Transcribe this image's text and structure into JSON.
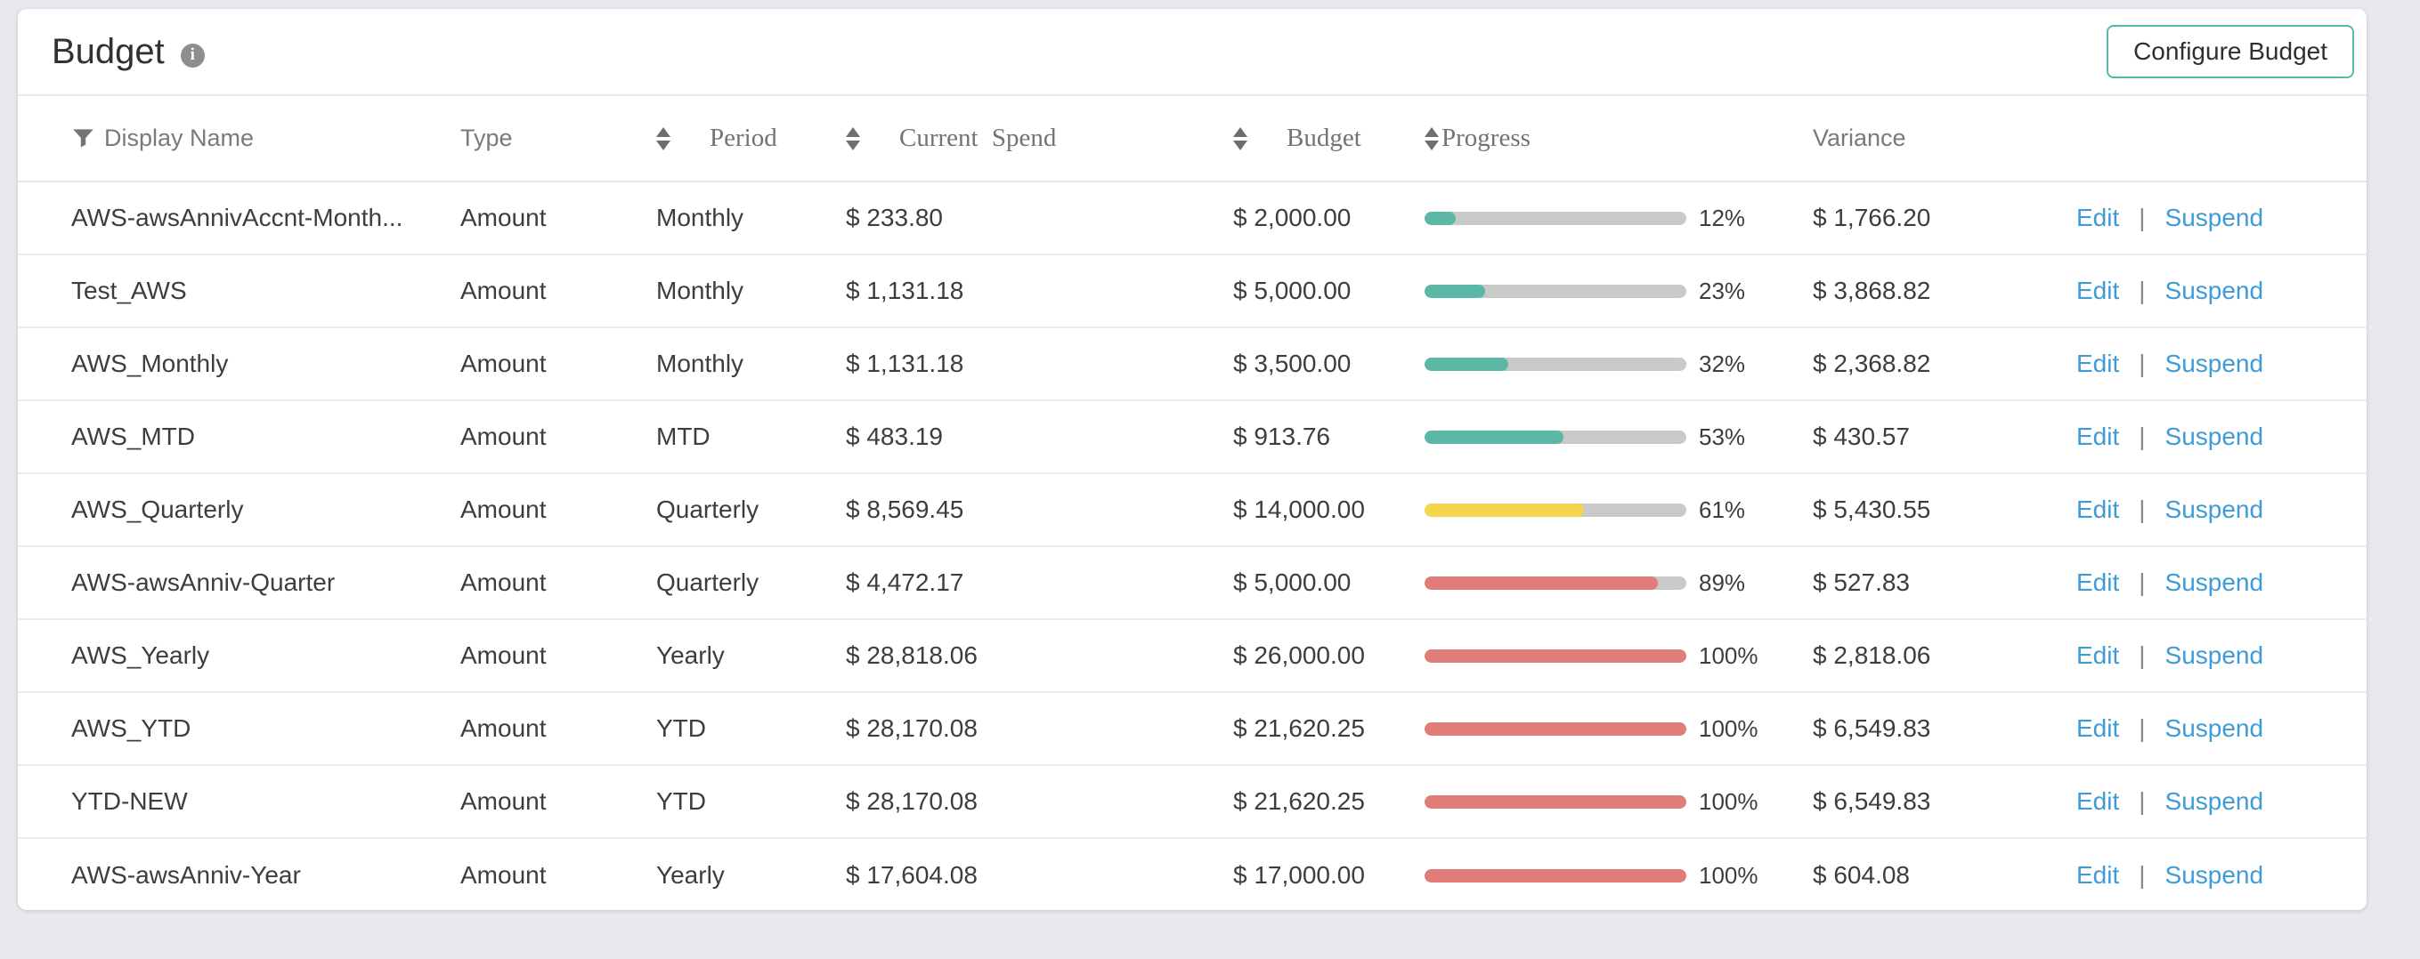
{
  "card": {
    "title": "Budget",
    "info_glyph": "i",
    "configure_button_label": "Configure Budget",
    "accent_color": "#55b9a9"
  },
  "table": {
    "columns": [
      {
        "key": "display_name",
        "label": "Display Name",
        "filter": true,
        "sortable": false
      },
      {
        "key": "type",
        "label": "Type",
        "sortable": false
      },
      {
        "key": "period",
        "label": "Period",
        "sortable": true
      },
      {
        "key": "current_spend",
        "label": "Current Spend",
        "sortable": true
      },
      {
        "key": "budget",
        "label": "Budget",
        "sortable": true
      },
      {
        "key": "progress",
        "label": "Progress",
        "sortable": true
      },
      {
        "key": "variance",
        "label": "Variance",
        "sortable": false
      }
    ],
    "actions": {
      "edit": "Edit",
      "separator": "|",
      "suspend": "Suspend"
    },
    "progress_colors": {
      "low": "#5cb8a6",
      "medium": "#f5d44e",
      "high": "#e07d78",
      "track": "#c9c9c9"
    },
    "link_color": "#3e9bd6",
    "rows": [
      {
        "display_name": "AWS-awsAnnivAccnt-Month...",
        "type": "Amount",
        "period": "Monthly",
        "current_spend": "$ 233.80",
        "budget": "$ 2,000.00",
        "progress_pct": 12,
        "progress_label": "12%",
        "progress_color": "#5cb8a6",
        "variance": "$ 1,766.20"
      },
      {
        "display_name": "Test_AWS",
        "type": "Amount",
        "period": "Monthly",
        "current_spend": "$ 1,131.18",
        "budget": "$ 5,000.00",
        "progress_pct": 23,
        "progress_label": "23%",
        "progress_color": "#5cb8a6",
        "variance": "$ 3,868.82"
      },
      {
        "display_name": "AWS_Monthly",
        "type": "Amount",
        "period": "Monthly",
        "current_spend": "$ 1,131.18",
        "budget": "$ 3,500.00",
        "progress_pct": 32,
        "progress_label": "32%",
        "progress_color": "#5cb8a6",
        "variance": "$ 2,368.82"
      },
      {
        "display_name": "AWS_MTD",
        "type": "Amount",
        "period": "MTD",
        "current_spend": "$ 483.19",
        "budget": "$ 913.76",
        "progress_pct": 53,
        "progress_label": "53%",
        "progress_color": "#5cb8a6",
        "variance": "$ 430.57"
      },
      {
        "display_name": "AWS_Quarterly",
        "type": "Amount",
        "period": "Quarterly",
        "current_spend": "$ 8,569.45",
        "budget": "$ 14,000.00",
        "progress_pct": 61,
        "progress_label": "61%",
        "progress_color": "#f5d44e",
        "variance": "$ 5,430.55"
      },
      {
        "display_name": "AWS-awsAnniv-Quarter",
        "type": "Amount",
        "period": "Quarterly",
        "current_spend": "$ 4,472.17",
        "budget": "$ 5,000.00",
        "progress_pct": 89,
        "progress_label": "89%",
        "progress_color": "#e07d78",
        "variance": "$ 527.83"
      },
      {
        "display_name": "AWS_Yearly",
        "type": "Amount",
        "period": "Yearly",
        "current_spend": "$ 28,818.06",
        "budget": "$ 26,000.00",
        "progress_pct": 100,
        "progress_label": "100%",
        "progress_color": "#e07d78",
        "variance": "$ 2,818.06"
      },
      {
        "display_name": "AWS_YTD",
        "type": "Amount",
        "period": "YTD",
        "current_spend": "$ 28,170.08",
        "budget": "$ 21,620.25",
        "progress_pct": 100,
        "progress_label": "100%",
        "progress_color": "#e07d78",
        "variance": "$ 6,549.83"
      },
      {
        "display_name": "YTD-NEW",
        "type": "Amount",
        "period": "YTD",
        "current_spend": "$ 28,170.08",
        "budget": "$ 21,620.25",
        "progress_pct": 100,
        "progress_label": "100%",
        "progress_color": "#e07d78",
        "variance": "$ 6,549.83"
      },
      {
        "display_name": "AWS-awsAnniv-Year",
        "type": "Amount",
        "period": "Yearly",
        "current_spend": "$ 17,604.08",
        "budget": "$ 17,000.00",
        "progress_pct": 100,
        "progress_label": "100%",
        "progress_color": "#e07d78",
        "variance": "$ 604.08"
      }
    ]
  }
}
